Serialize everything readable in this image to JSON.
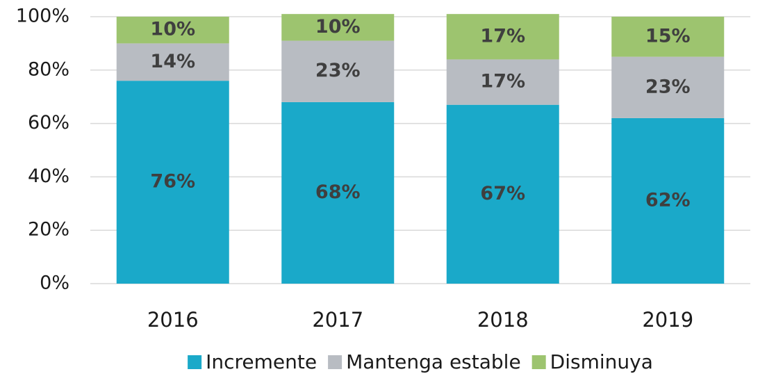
{
  "chart_data": {
    "type": "stacked_bar",
    "categories": [
      "2016",
      "2017",
      "2018",
      "2019"
    ],
    "series": [
      {
        "name": "Incremente",
        "color": "#1aa9c9",
        "values": [
          76,
          68,
          67,
          62
        ],
        "value_labels": [
          "76%",
          "68%",
          "67%",
          "62%"
        ]
      },
      {
        "name": "Mantenga estable",
        "color": "#b8bcc2",
        "values": [
          14,
          23,
          17,
          23
        ],
        "value_labels": [
          "14%",
          "23%",
          "17%",
          "23%"
        ]
      },
      {
        "name": "Disminuya",
        "color": "#9dc46f",
        "values": [
          10,
          10,
          17,
          15
        ],
        "value_labels": [
          "10%",
          "10%",
          "17%",
          "15%"
        ]
      }
    ],
    "ylim": [
      0,
      100
    ],
    "yticks": [
      {
        "value": 0,
        "label": "0%"
      },
      {
        "value": 20,
        "label": "20%"
      },
      {
        "value": 40,
        "label": "40%"
      },
      {
        "value": 60,
        "label": "60%"
      },
      {
        "value": 80,
        "label": "80%"
      },
      {
        "value": 100,
        "label": "100%"
      }
    ],
    "grid": true,
    "legend": "bottom"
  }
}
